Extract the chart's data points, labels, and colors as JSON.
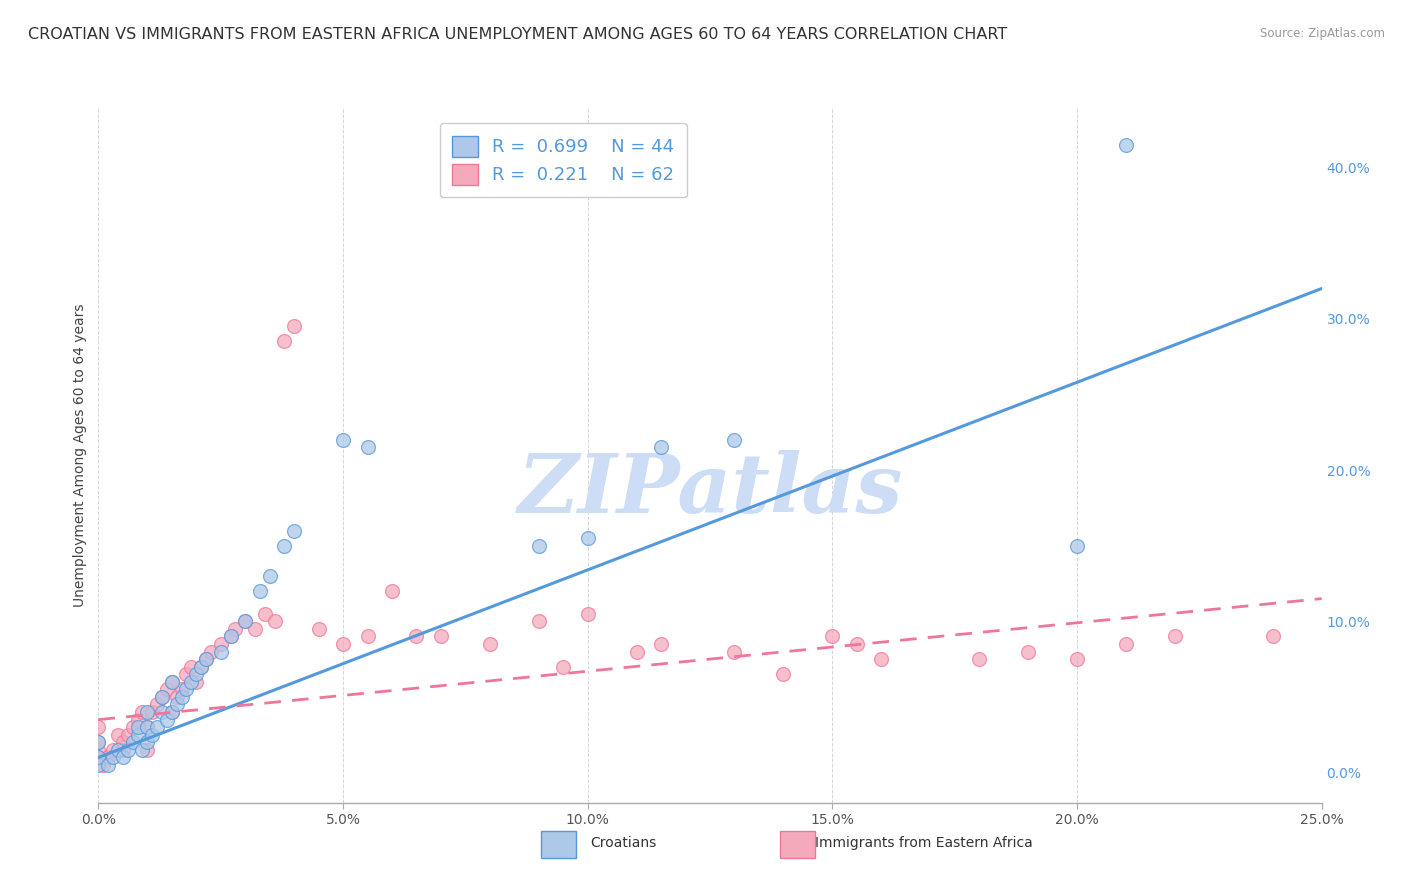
{
  "title": "CROATIAN VS IMMIGRANTS FROM EASTERN AFRICA UNEMPLOYMENT AMONG AGES 60 TO 64 YEARS CORRELATION CHART",
  "source": "Source: ZipAtlas.com",
  "ylabel": "Unemployment Among Ages 60 to 64 years",
  "xlim": [
    0.0,
    0.25
  ],
  "ylim": [
    -0.02,
    0.44
  ],
  "xticks": [
    0.0,
    0.05,
    0.1,
    0.15,
    0.2,
    0.25
  ],
  "yticks": [
    0.0,
    0.1,
    0.2,
    0.3,
    0.4
  ],
  "xticklabels": [
    "0.0%",
    "5.0%",
    "10.0%",
    "15.0%",
    "20.0%",
    "25.0%"
  ],
  "yticklabels": [
    "0.0%",
    "10.0%",
    "20.0%",
    "30.0%",
    "40.0%"
  ],
  "legend_labels": [
    "Croatians",
    "Immigrants from Eastern Africa"
  ],
  "R_croatian": 0.699,
  "N_croatian": 44,
  "R_immigrant": 0.221,
  "N_immigrant": 62,
  "color_croatian": "#adc8e8",
  "color_immigrant": "#f4aabb",
  "line_color_croatian": "#5599dd",
  "line_color_immigrant": "#ee7799",
  "watermark": "ZIPatlas",
  "watermark_color": "#ccddf5",
  "title_fontsize": 11.5,
  "axis_label_fontsize": 10,
  "tick_fontsize": 10,
  "blue_line_x0": 0.0,
  "blue_line_y0": 0.01,
  "blue_line_x1": 0.25,
  "blue_line_y1": 0.32,
  "pink_line_x0": 0.0,
  "pink_line_y0": 0.035,
  "pink_line_x1": 0.25,
  "pink_line_y1": 0.115,
  "croatian_scatter_x": [
    0.0,
    0.0,
    0.0,
    0.002,
    0.003,
    0.004,
    0.005,
    0.006,
    0.007,
    0.008,
    0.008,
    0.009,
    0.01,
    0.01,
    0.01,
    0.011,
    0.012,
    0.013,
    0.013,
    0.014,
    0.015,
    0.015,
    0.016,
    0.017,
    0.018,
    0.019,
    0.02,
    0.021,
    0.022,
    0.025,
    0.027,
    0.03,
    0.033,
    0.035,
    0.038,
    0.04,
    0.05,
    0.055,
    0.09,
    0.1,
    0.115,
    0.13,
    0.2,
    0.21
  ],
  "croatian_scatter_y": [
    0.005,
    0.01,
    0.02,
    0.005,
    0.01,
    0.015,
    0.01,
    0.015,
    0.02,
    0.025,
    0.03,
    0.015,
    0.02,
    0.03,
    0.04,
    0.025,
    0.03,
    0.04,
    0.05,
    0.035,
    0.04,
    0.06,
    0.045,
    0.05,
    0.055,
    0.06,
    0.065,
    0.07,
    0.075,
    0.08,
    0.09,
    0.1,
    0.12,
    0.13,
    0.15,
    0.16,
    0.22,
    0.215,
    0.15,
    0.155,
    0.215,
    0.22,
    0.15,
    0.415
  ],
  "immigrant_scatter_x": [
    0.0,
    0.0,
    0.0,
    0.0,
    0.001,
    0.002,
    0.003,
    0.004,
    0.005,
    0.005,
    0.006,
    0.007,
    0.008,
    0.009,
    0.01,
    0.01,
    0.011,
    0.012,
    0.013,
    0.014,
    0.015,
    0.015,
    0.016,
    0.017,
    0.018,
    0.019,
    0.02,
    0.021,
    0.022,
    0.023,
    0.025,
    0.027,
    0.028,
    0.03,
    0.032,
    0.034,
    0.036,
    0.038,
    0.04,
    0.045,
    0.05,
    0.055,
    0.06,
    0.065,
    0.07,
    0.08,
    0.09,
    0.095,
    0.1,
    0.11,
    0.115,
    0.13,
    0.14,
    0.15,
    0.155,
    0.16,
    0.18,
    0.19,
    0.2,
    0.21,
    0.22,
    0.24
  ],
  "immigrant_scatter_y": [
    0.01,
    0.015,
    0.02,
    0.03,
    0.005,
    0.01,
    0.015,
    0.025,
    0.015,
    0.02,
    0.025,
    0.03,
    0.035,
    0.04,
    0.015,
    0.03,
    0.04,
    0.045,
    0.05,
    0.055,
    0.04,
    0.06,
    0.05,
    0.055,
    0.065,
    0.07,
    0.06,
    0.07,
    0.075,
    0.08,
    0.085,
    0.09,
    0.095,
    0.1,
    0.095,
    0.105,
    0.1,
    0.285,
    0.295,
    0.095,
    0.085,
    0.09,
    0.12,
    0.09,
    0.09,
    0.085,
    0.1,
    0.07,
    0.105,
    0.08,
    0.085,
    0.08,
    0.065,
    0.09,
    0.085,
    0.075,
    0.075,
    0.08,
    0.075,
    0.085,
    0.09,
    0.09
  ],
  "background_color": "#ffffff",
  "grid_color": "#cccccc"
}
